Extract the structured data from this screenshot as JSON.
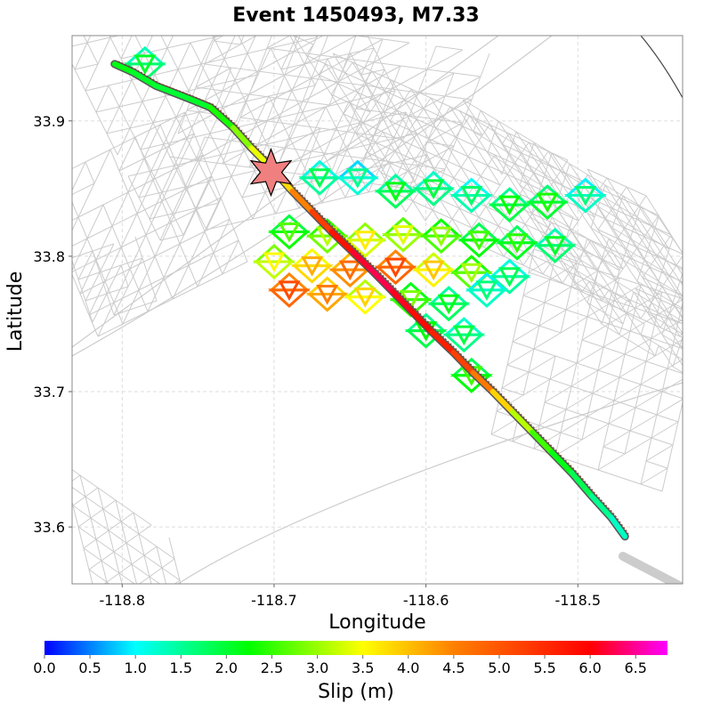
{
  "chart_data": {
    "type": "map",
    "title": "Event 1450493, M7.33",
    "xlabel": "Longitude",
    "ylabel": "Latitude",
    "xlim": [
      -118.833,
      -118.431
    ],
    "ylim": [
      33.558,
      33.963
    ],
    "xticks": [
      -118.8,
      -118.7,
      -118.6,
      -118.5
    ],
    "xtick_labels": [
      "-118.8",
      "-118.7",
      "-118.6",
      "-118.5"
    ],
    "yticks": [
      33.6,
      33.7,
      33.8,
      33.9
    ],
    "ytick_labels": [
      "33.6",
      "33.7",
      "33.8",
      "33.9"
    ],
    "grid": true,
    "colorbar": {
      "label": "Slip (m)",
      "min": 0.0,
      "max": 6.85,
      "ticks": [
        0.0,
        0.5,
        1.0,
        1.5,
        2.0,
        2.5,
        3.0,
        3.5,
        4.0,
        4.5,
        5.0,
        5.5,
        6.0,
        6.5
      ],
      "tick_labels": [
        "0.0",
        "0.5",
        "1.0",
        "1.5",
        "2.0",
        "2.5",
        "3.0",
        "3.5",
        "4.0",
        "4.5",
        "5.0",
        "5.5",
        "6.0",
        "6.5"
      ],
      "colors": [
        "#0000ff",
        "#00ffff",
        "#00ff00",
        "#ffff00",
        "#ff8000",
        "#ff0000",
        "#ff00ff"
      ]
    },
    "hypocenter": {
      "lon": -118.702,
      "lat": 33.862
    },
    "fault_trace": [
      [
        -118.805,
        33.942
      ],
      [
        -118.793,
        33.936
      ],
      [
        -118.778,
        33.926
      ],
      [
        -118.755,
        33.916
      ],
      [
        -118.742,
        33.91
      ],
      [
        -118.727,
        33.895
      ],
      [
        -118.715,
        33.88
      ],
      [
        -118.7,
        33.863
      ],
      [
        -118.688,
        33.848
      ],
      [
        -118.675,
        33.833
      ],
      [
        -118.662,
        33.818
      ],
      [
        -118.648,
        33.803
      ],
      [
        -118.636,
        33.79
      ],
      [
        -118.622,
        33.774
      ],
      [
        -118.609,
        33.759
      ],
      [
        -118.596,
        33.744
      ],
      [
        -118.582,
        33.729
      ],
      [
        -118.569,
        33.714
      ],
      [
        -118.556,
        33.7
      ],
      [
        -118.543,
        33.685
      ],
      [
        -118.53,
        33.67
      ],
      [
        -118.517,
        33.655
      ],
      [
        -118.504,
        33.64
      ],
      [
        -118.491,
        33.623
      ],
      [
        -118.478,
        33.607
      ],
      [
        -118.469,
        33.593
      ]
    ],
    "trace_slip": [
      2.2,
      2.1,
      2.0,
      2.0,
      2.1,
      2.6,
      3.2,
      3.6,
      4.0,
      5.0,
      5.6,
      6.0,
      6.3,
      6.2,
      6.0,
      5.8,
      5.5,
      5.0,
      4.2,
      3.5,
      2.8,
      2.3,
      2.0,
      1.7,
      1.4,
      1.2
    ],
    "rupture_elements": [
      {
        "lon": -118.67,
        "lat": 33.858,
        "slip": 1.5
      },
      {
        "lon": -118.645,
        "lat": 33.858,
        "slip": 1.2
      },
      {
        "lon": -118.62,
        "lat": 33.848,
        "slip": 1.8
      },
      {
        "lon": -118.595,
        "lat": 33.85,
        "slip": 1.6
      },
      {
        "lon": -118.57,
        "lat": 33.845,
        "slip": 1.4
      },
      {
        "lon": -118.545,
        "lat": 33.838,
        "slip": 1.9
      },
      {
        "lon": -118.52,
        "lat": 33.84,
        "slip": 2.0
      },
      {
        "lon": -118.69,
        "lat": 33.818,
        "slip": 2.3
      },
      {
        "lon": -118.665,
        "lat": 33.815,
        "slip": 2.8
      },
      {
        "lon": -118.64,
        "lat": 33.812,
        "slip": 3.3
      },
      {
        "lon": -118.615,
        "lat": 33.816,
        "slip": 3.0
      },
      {
        "lon": -118.59,
        "lat": 33.815,
        "slip": 2.6
      },
      {
        "lon": -118.565,
        "lat": 33.812,
        "slip": 2.2
      },
      {
        "lon": -118.54,
        "lat": 33.81,
        "slip": 2.1
      },
      {
        "lon": -118.515,
        "lat": 33.808,
        "slip": 1.7
      },
      {
        "lon": -118.7,
        "lat": 33.796,
        "slip": 3.2
      },
      {
        "lon": -118.675,
        "lat": 33.793,
        "slip": 3.8
      },
      {
        "lon": -118.65,
        "lat": 33.79,
        "slip": 4.4
      },
      {
        "lon": -118.62,
        "lat": 33.792,
        "slip": 4.8
      },
      {
        "lon": -118.595,
        "lat": 33.79,
        "slip": 3.6
      },
      {
        "lon": -118.57,
        "lat": 33.788,
        "slip": 2.7
      },
      {
        "lon": -118.545,
        "lat": 33.785,
        "slip": 1.5
      },
      {
        "lon": -118.69,
        "lat": 33.775,
        "slip": 4.8
      },
      {
        "lon": -118.665,
        "lat": 33.772,
        "slip": 4.2
      },
      {
        "lon": -118.64,
        "lat": 33.77,
        "slip": 3.5
      },
      {
        "lon": -118.61,
        "lat": 33.768,
        "slip": 2.5
      },
      {
        "lon": -118.585,
        "lat": 33.765,
        "slip": 1.8
      },
      {
        "lon": -118.56,
        "lat": 33.775,
        "slip": 1.3
      },
      {
        "lon": -118.6,
        "lat": 33.745,
        "slip": 1.9
      },
      {
        "lon": -118.575,
        "lat": 33.742,
        "slip": 1.6
      },
      {
        "lon": -118.57,
        "lat": 33.712,
        "slip": 2.2
      },
      {
        "lon": -118.785,
        "lat": 33.942,
        "slip": 1.7
      },
      {
        "lon": -118.495,
        "lat": 33.845,
        "slip": 1.3
      }
    ],
    "background_mesh_color": "#cccccc"
  }
}
